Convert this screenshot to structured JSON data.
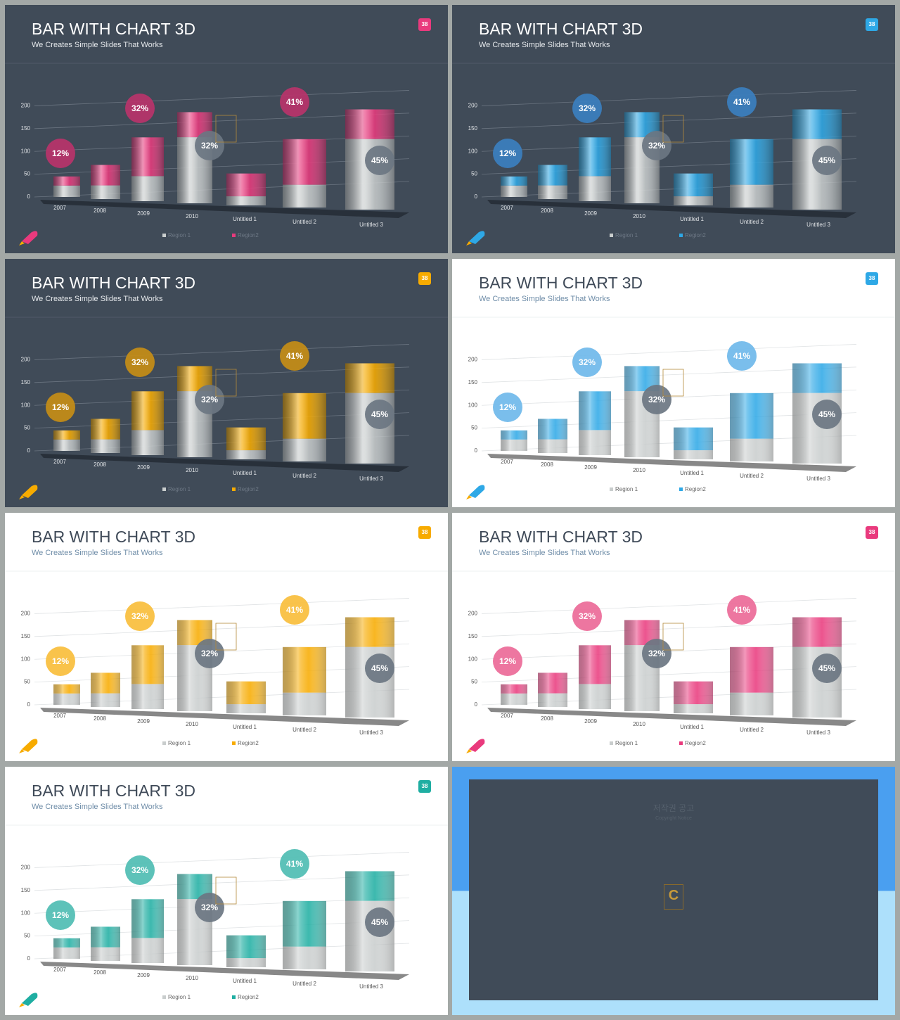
{
  "chart_data": [
    {
      "type": "bar",
      "theme": "dark",
      "title": "BAR WITH CHART 3D",
      "subtitle": "We Creates Simple Slides That Works",
      "badge": "38",
      "categories": [
        "2007",
        "2008",
        "2009",
        "2010",
        "Untitled 1",
        "Untitled 2",
        "Untitled 3"
      ],
      "series": [
        {
          "name": "Region 1",
          "color": "#c9cdcd",
          "values": [
            25,
            30,
            55,
            145,
            20,
            50,
            155
          ]
        },
        {
          "name": "Region2",
          "color": "#e93a7d",
          "values": [
            20,
            45,
            85,
            55,
            50,
            100,
            65
          ]
        }
      ],
      "stacked": true,
      "ylim": [
        0,
        230
      ],
      "yticks": [
        0,
        50,
        100,
        150,
        200
      ],
      "grid": true,
      "bubbles": [
        {
          "label": "12%",
          "color": "#b8336a"
        },
        {
          "label": "32%",
          "color": "#b8336a"
        },
        {
          "label": "32%",
          "color": "#6b7682"
        },
        {
          "label": "41%",
          "color": "#b8336a"
        },
        {
          "label": "45%",
          "color": "#6b7682"
        }
      ]
    },
    {
      "type": "bar",
      "theme": "dark",
      "title": "BAR WITH CHART 3D",
      "subtitle": "We Creates Simple Slides That Works",
      "badge": "38",
      "categories": [
        "2007",
        "2008",
        "2009",
        "2010",
        "Untitled 1",
        "Untitled 2",
        "Untitled 3"
      ],
      "series": [
        {
          "name": "Region 1",
          "color": "#c9cdcd",
          "values": [
            25,
            30,
            55,
            145,
            20,
            50,
            155
          ]
        },
        {
          "name": "Region2",
          "color": "#2ea8e6",
          "values": [
            20,
            45,
            85,
            55,
            50,
            100,
            65
          ]
        }
      ],
      "stacked": true,
      "ylim": [
        0,
        230
      ],
      "yticks": [
        0,
        50,
        100,
        150,
        200
      ],
      "grid": true,
      "bubbles": [
        {
          "label": "12%",
          "color": "#3b7fbf"
        },
        {
          "label": "32%",
          "color": "#3b7fbf"
        },
        {
          "label": "32%",
          "color": "#6b7682"
        },
        {
          "label": "41%",
          "color": "#3b7fbf"
        },
        {
          "label": "45%",
          "color": "#6b7682"
        }
      ]
    },
    {
      "type": "bar",
      "theme": "dark",
      "title": "BAR WITH CHART 3D",
      "subtitle": "We Creates Simple Slides That Works",
      "badge": "38",
      "categories": [
        "2007",
        "2008",
        "2009",
        "2010",
        "Untitled 1",
        "Untitled 2",
        "Untitled 3"
      ],
      "series": [
        {
          "name": "Region 1",
          "color": "#c9cdcd",
          "values": [
            25,
            30,
            55,
            145,
            20,
            50,
            155
          ]
        },
        {
          "name": "Region2",
          "color": "#f7ab00",
          "values": [
            20,
            45,
            85,
            55,
            50,
            100,
            65
          ]
        }
      ],
      "stacked": true,
      "ylim": [
        0,
        230
      ],
      "yticks": [
        0,
        50,
        100,
        150,
        200
      ],
      "grid": true,
      "bubbles": [
        {
          "label": "12%",
          "color": "#c68d16"
        },
        {
          "label": "32%",
          "color": "#c68d16"
        },
        {
          "label": "32%",
          "color": "#6b7682"
        },
        {
          "label": "41%",
          "color": "#c68d16"
        },
        {
          "label": "45%",
          "color": "#6b7682"
        }
      ]
    },
    {
      "type": "bar",
      "theme": "light",
      "title": "BAR WITH CHART 3D",
      "subtitle": "We Creates Simple Slides That Works",
      "badge": "38",
      "categories": [
        "2007",
        "2008",
        "2009",
        "2010",
        "Untitled 1",
        "Untitled 2",
        "Untitled 3"
      ],
      "series": [
        {
          "name": "Region 1",
          "color": "#c9cdcd",
          "values": [
            25,
            30,
            55,
            145,
            20,
            50,
            155
          ]
        },
        {
          "name": "Region2",
          "color": "#2ea8e6",
          "values": [
            20,
            45,
            85,
            55,
            50,
            100,
            65
          ]
        }
      ],
      "stacked": true,
      "ylim": [
        0,
        230
      ],
      "yticks": [
        0,
        50,
        100,
        150,
        200
      ],
      "grid": true,
      "bubbles": [
        {
          "label": "12%",
          "color": "#6fb8ea"
        },
        {
          "label": "32%",
          "color": "#6fb8ea"
        },
        {
          "label": "32%",
          "color": "#6b7682"
        },
        {
          "label": "41%",
          "color": "#6fb8ea"
        },
        {
          "label": "45%",
          "color": "#6b7682"
        }
      ]
    },
    {
      "type": "bar",
      "theme": "light",
      "title": "BAR WITH CHART 3D",
      "subtitle": "We Creates Simple Slides That Works",
      "badge": "38",
      "categories": [
        "2007",
        "2008",
        "2009",
        "2010",
        "Untitled 1",
        "Untitled 2",
        "Untitled 3"
      ],
      "series": [
        {
          "name": "Region 1",
          "color": "#c9cdcd",
          "values": [
            25,
            30,
            55,
            145,
            20,
            50,
            155
          ]
        },
        {
          "name": "Region2",
          "color": "#f7ab00",
          "values": [
            20,
            45,
            85,
            55,
            50,
            100,
            65
          ]
        }
      ],
      "stacked": true,
      "ylim": [
        0,
        230
      ],
      "yticks": [
        0,
        50,
        100,
        150,
        200
      ],
      "grid": true,
      "bubbles": [
        {
          "label": "12%",
          "color": "#f9be3c"
        },
        {
          "label": "32%",
          "color": "#f9be3c"
        },
        {
          "label": "32%",
          "color": "#6b7682"
        },
        {
          "label": "41%",
          "color": "#f9be3c"
        },
        {
          "label": "45%",
          "color": "#6b7682"
        }
      ]
    },
    {
      "type": "bar",
      "theme": "light",
      "title": "BAR WITH CHART 3D",
      "subtitle": "We Creates Simple Slides That Works",
      "badge": "38",
      "categories": [
        "2007",
        "2008",
        "2009",
        "2010",
        "Untitled 1",
        "Untitled 2",
        "Untitled 3"
      ],
      "series": [
        {
          "name": "Region 1",
          "color": "#c9cdcd",
          "values": [
            25,
            30,
            55,
            145,
            20,
            50,
            155
          ]
        },
        {
          "name": "Region2",
          "color": "#e93a7d",
          "values": [
            20,
            45,
            85,
            55,
            50,
            100,
            65
          ]
        }
      ],
      "stacked": true,
      "ylim": [
        0,
        230
      ],
      "yticks": [
        0,
        50,
        100,
        150,
        200
      ],
      "grid": true,
      "bubbles": [
        {
          "label": "12%",
          "color": "#ec6a98"
        },
        {
          "label": "32%",
          "color": "#ec6a98"
        },
        {
          "label": "32%",
          "color": "#6b7682"
        },
        {
          "label": "41%",
          "color": "#ec6a98"
        },
        {
          "label": "45%",
          "color": "#6b7682"
        }
      ]
    },
    {
      "type": "bar",
      "theme": "light",
      "title": "BAR WITH CHART 3D",
      "subtitle": "We Creates Simple Slides That Works",
      "badge": "38",
      "categories": [
        "2007",
        "2008",
        "2009",
        "2010",
        "Untitled 1",
        "Untitled 2",
        "Untitled 3"
      ],
      "series": [
        {
          "name": "Region 1",
          "color": "#c9cdcd",
          "values": [
            25,
            30,
            55,
            145,
            20,
            50,
            155
          ]
        },
        {
          "name": "Region2",
          "color": "#1faea2",
          "values": [
            20,
            45,
            85,
            55,
            50,
            100,
            65
          ]
        }
      ],
      "stacked": true,
      "ylim": [
        0,
        230
      ],
      "yticks": [
        0,
        50,
        100,
        150,
        200
      ],
      "grid": true,
      "bubbles": [
        {
          "label": "12%",
          "color": "#4fbdb3"
        },
        {
          "label": "32%",
          "color": "#4fbdb3"
        },
        {
          "label": "32%",
          "color": "#6b7682"
        },
        {
          "label": "41%",
          "color": "#4fbdb3"
        },
        {
          "label": "45%",
          "color": "#6b7682"
        }
      ]
    }
  ],
  "notice": {
    "title": "저작권 공고",
    "subtitle": "Copyright Notice"
  }
}
